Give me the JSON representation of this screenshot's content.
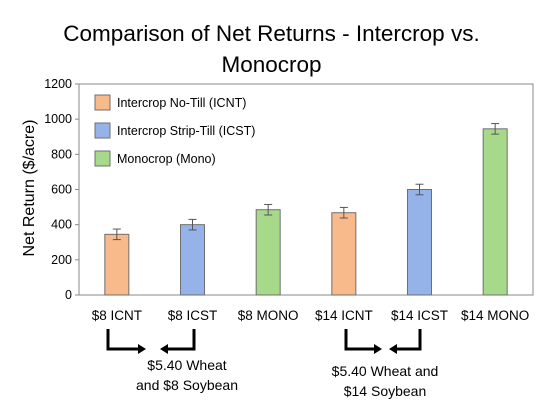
{
  "chart_data": {
    "type": "bar",
    "title_line1": "Comparison of Net Returns - Intercrop vs.",
    "title_line2": "Monocrop",
    "ylabel": "Net Return ($/acre)",
    "xlabel": "",
    "ylim": [
      0,
      1200
    ],
    "yticks": [
      0,
      200,
      400,
      600,
      800,
      1000,
      1200
    ],
    "grid": false,
    "legend_position": "top-left",
    "categories": [
      "$8 ICNT",
      "$8 ICST",
      "$8 MONO",
      "$14 ICNT",
      "$14 ICST",
      "$14 MONO"
    ],
    "values": [
      345,
      400,
      485,
      468,
      600,
      945
    ],
    "errors": [
      30,
      30,
      30,
      30,
      30,
      30
    ],
    "bar_groups": [
      "icnt",
      "icst",
      "mono",
      "icnt",
      "icst",
      "mono"
    ],
    "legend": [
      {
        "key": "icnt",
        "label": "Intercrop No-Till (ICNT)",
        "color": "#f8b98b"
      },
      {
        "key": "icst",
        "label": "Intercrop Strip-Till (ICST)",
        "color": "#95b3e8"
      },
      {
        "key": "mono",
        "label": "Monocrop (Mono)",
        "color": "#a7d98a"
      }
    ],
    "annotations": [
      {
        "line1": "$5.40 Wheat",
        "line2": "and $8 Soybean"
      },
      {
        "line1": "$5.40 Wheat and",
        "line2": "$14 Soybean"
      }
    ]
  }
}
